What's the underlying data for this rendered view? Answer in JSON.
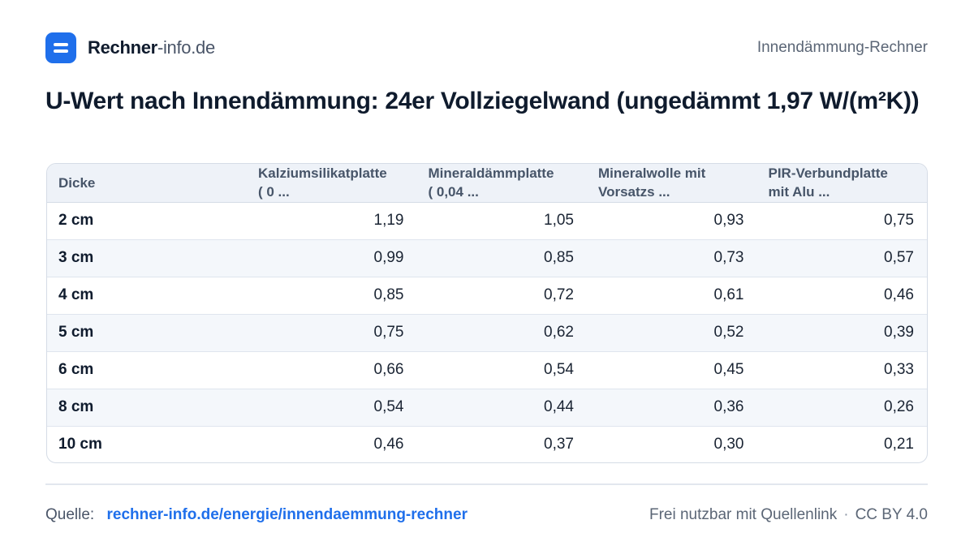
{
  "brand": {
    "bold": "Rechner",
    "light": "-info.de"
  },
  "header_right": "Innendämmung-Rechner",
  "title": "U-Wert nach Innendämmung: 24er Vollziegelwand (ungedämmt 1,97 W/(m²K))",
  "table": {
    "columns": [
      {
        "line1": "Dicke",
        "line2": ""
      },
      {
        "line1": "Kalziumsilikatplatte",
        "line2": "( 0 ..."
      },
      {
        "line1": "Mineraldämmplatte",
        "line2": "( 0,04 ..."
      },
      {
        "line1": "Mineralwolle mit",
        "line2": "Vorsatzs ..."
      },
      {
        "line1": "PIR-Verbundplatte",
        "line2": "mit Alu ..."
      }
    ],
    "rows": [
      [
        "2 cm",
        "1,19",
        "1,05",
        "0,93",
        "0,75"
      ],
      [
        "3 cm",
        "0,99",
        "0,85",
        "0,73",
        "0,57"
      ],
      [
        "4 cm",
        "0,85",
        "0,72",
        "0,61",
        "0,46"
      ],
      [
        "5 cm",
        "0,75",
        "0,62",
        "0,52",
        "0,39"
      ],
      [
        "6 cm",
        "0,66",
        "0,54",
        "0,45",
        "0,33"
      ],
      [
        "8 cm",
        "0,54",
        "0,44",
        "0,36",
        "0,26"
      ],
      [
        "10 cm",
        "0,46",
        "0,37",
        "0,30",
        "0,21"
      ]
    ]
  },
  "footer": {
    "source_label": "Quelle:",
    "source_link": "rechner-info.de/energie/innendaemmung-rechner",
    "license_text": "Frei nutzbar mit Quellenlink",
    "separator": "·",
    "license": "CC BY 4.0"
  },
  "colors": {
    "accent": "#1f6feb",
    "header_bg": "#eef2f8",
    "stripe": "#f4f7fb"
  },
  "icons": {
    "logo": "menu-lines-icon"
  }
}
